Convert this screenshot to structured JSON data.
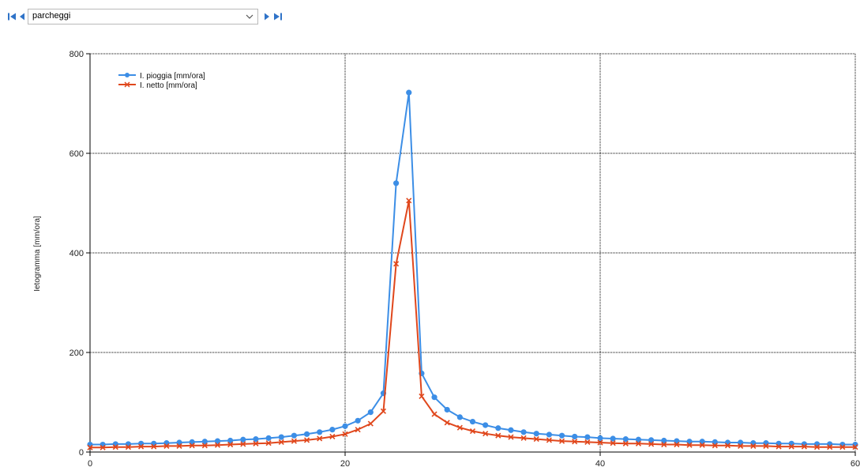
{
  "toolbar": {
    "selected_value": "parcheggi",
    "icons": [
      "first-record-icon",
      "previous-record-icon",
      "chevron-down-icon",
      "next-record-icon",
      "last-record-icon"
    ],
    "nav_color": "#2f73c8"
  },
  "chart_data": {
    "type": "line",
    "title": "",
    "xlabel": "",
    "ylabel": "Ietogramma [mm/ora]",
    "xlim": [
      0,
      60
    ],
    "ylim": [
      0,
      800
    ],
    "x_ticks": [
      0,
      20,
      40,
      60
    ],
    "y_ticks": [
      0,
      200,
      400,
      600,
      800
    ],
    "grid": true,
    "legend_position": "top-left",
    "series": [
      {
        "name": "I. pioggia [mm/ora]",
        "color": "#3c8ee6",
        "marker": "circle",
        "x": [
          0,
          1,
          2,
          3,
          4,
          5,
          6,
          7,
          8,
          9,
          10,
          11,
          12,
          13,
          14,
          15,
          16,
          17,
          18,
          19,
          20,
          21,
          22,
          23,
          24,
          25,
          26,
          27,
          28,
          29,
          30,
          31,
          32,
          33,
          34,
          35,
          36,
          37,
          38,
          39,
          40,
          41,
          42,
          43,
          44,
          45,
          46,
          47,
          48,
          49,
          50,
          51,
          52,
          53,
          54,
          55,
          56,
          57,
          58,
          59,
          60
        ],
        "values": [
          15,
          15,
          16,
          16,
          17,
          17,
          18,
          19,
          20,
          21,
          22,
          23,
          25,
          26,
          28,
          30,
          33,
          36,
          40,
          45,
          52,
          63,
          80,
          118,
          540,
          722,
          158,
          110,
          85,
          70,
          61,
          54,
          48,
          44,
          40,
          37,
          35,
          33,
          31,
          30,
          28,
          27,
          26,
          25,
          24,
          23,
          22,
          21,
          21,
          20,
          19,
          19,
          18,
          18,
          17,
          17,
          16,
          16,
          16,
          15,
          15
        ]
      },
      {
        "name": "I. netto [mm/ora]",
        "color": "#e0471c",
        "marker": "x",
        "x": [
          0,
          1,
          2,
          3,
          4,
          5,
          6,
          7,
          8,
          9,
          10,
          11,
          12,
          13,
          14,
          15,
          16,
          17,
          18,
          19,
          20,
          21,
          22,
          23,
          24,
          25,
          26,
          27,
          28,
          29,
          30,
          31,
          32,
          33,
          34,
          35,
          36,
          37,
          38,
          39,
          40,
          41,
          42,
          43,
          44,
          45,
          46,
          47,
          48,
          49,
          50,
          51,
          52,
          53,
          54,
          55,
          56,
          57,
          58,
          59,
          60
        ],
        "values": [
          9,
          9,
          10,
          10,
          11,
          11,
          12,
          12,
          13,
          13,
          14,
          15,
          16,
          17,
          18,
          20,
          22,
          24,
          27,
          31,
          36,
          45,
          57,
          82,
          378,
          505,
          112,
          76,
          59,
          49,
          42,
          37,
          33,
          30,
          28,
          26,
          24,
          22,
          21,
          20,
          19,
          18,
          17,
          17,
          16,
          15,
          15,
          14,
          14,
          13,
          13,
          12,
          12,
          12,
          11,
          11,
          11,
          10,
          10,
          10,
          10
        ]
      }
    ]
  }
}
